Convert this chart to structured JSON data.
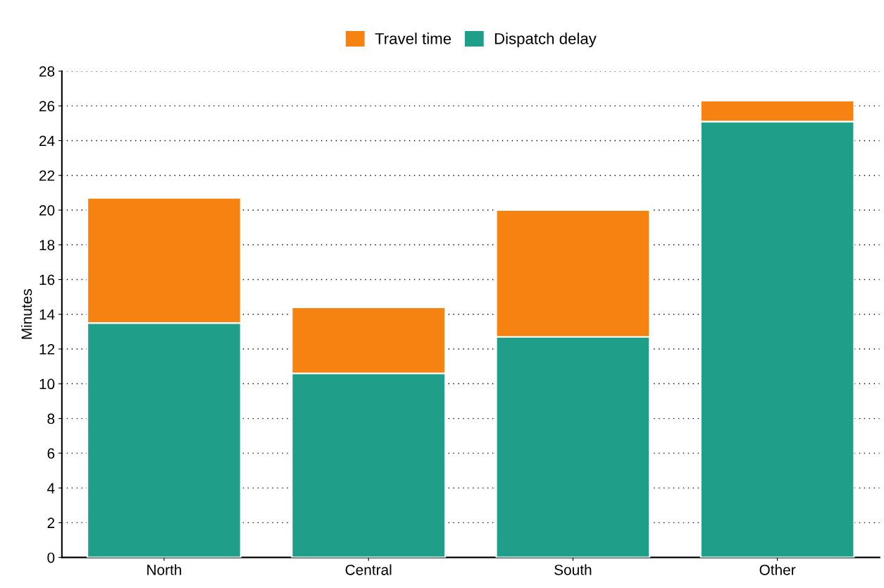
{
  "chart_data": {
    "type": "bar",
    "stacked": true,
    "ylabel": "Minutes",
    "categories": [
      "North",
      "Central",
      "South",
      "Other"
    ],
    "series": [
      {
        "name": "Dispatch delay",
        "color": "#1f9e89",
        "values": [
          13.5,
          10.6,
          12.7,
          25.1
        ]
      },
      {
        "name": "Travel time",
        "color": "#f68212",
        "values": [
          7.2,
          3.8,
          7.3,
          1.2
        ]
      }
    ],
    "ylim": [
      0,
      28
    ],
    "yticks": [
      0,
      2,
      4,
      6,
      8,
      10,
      12,
      14,
      16,
      18,
      20,
      22,
      24,
      26,
      28
    ],
    "grid": "y",
    "legend": "top"
  }
}
